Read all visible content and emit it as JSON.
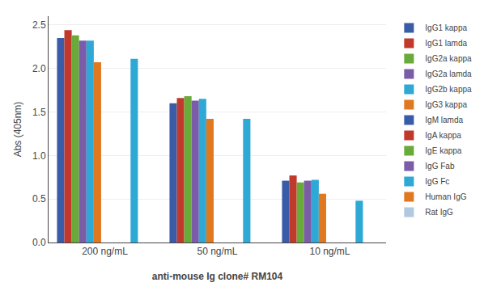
{
  "chart_data": {
    "type": "bar",
    "categories": [
      "200 ng/mL",
      "50 ng/mL",
      "10 ng/mL"
    ],
    "series": [
      {
        "name": "IgG1 kappa",
        "color": "#3a5ca8",
        "values": [
          2.35,
          1.6,
          0.71
        ]
      },
      {
        "name": "IgG1 lamda",
        "color": "#c0392b",
        "values": [
          2.44,
          1.66,
          0.77
        ]
      },
      {
        "name": "IgG2a kappa",
        "color": "#6aaa3a",
        "values": [
          2.38,
          1.68,
          0.69
        ]
      },
      {
        "name": "IgG2a lamda",
        "color": "#7a5ca8",
        "values": [
          2.32,
          1.63,
          0.71
        ]
      },
      {
        "name": "IgG2b kappa",
        "color": "#2ea8d5",
        "values": [
          2.32,
          1.65,
          0.72
        ]
      },
      {
        "name": "IgG3 kappa",
        "color": "#e07820",
        "values": [
          2.07,
          1.42,
          0.56
        ]
      },
      {
        "name": "IgM lamda",
        "color": "#3a5ca8",
        "values": [
          0.0,
          0.0,
          0.0
        ]
      },
      {
        "name": "IgA kappa",
        "color": "#c0392b",
        "values": [
          0.0,
          0.0,
          0.0
        ]
      },
      {
        "name": "IgE kappa",
        "color": "#6aaa3a",
        "values": [
          0.0,
          0.0,
          0.0
        ]
      },
      {
        "name": "IgG Fab",
        "color": "#7a5ca8",
        "values": [
          0.0,
          0.0,
          0.0
        ]
      },
      {
        "name": "IgG Fc",
        "color": "#2ea8d5",
        "values": [
          2.11,
          1.42,
          0.48
        ]
      },
      {
        "name": "Human IgG",
        "color": "#e07820",
        "values": [
          0.0,
          0.0,
          0.0
        ]
      },
      {
        "name": "Rat IgG",
        "color": "#b0c8e0",
        "values": [
          0.0,
          0.0,
          0.0
        ]
      }
    ],
    "xlabel": "anti-mouse Ig clone# RM104",
    "ylabel": "Abs (405nm)",
    "ylim": [
      0,
      2.6
    ],
    "yticks": [
      {
        "value": 0,
        "label": "0.0"
      },
      0.5,
      {
        "value": 1.0,
        "label": "1.0"
      },
      1.5,
      {
        "value": 2.0,
        "label": "2.0"
      },
      2.5
    ],
    "grid": true,
    "legend": "upper right"
  }
}
